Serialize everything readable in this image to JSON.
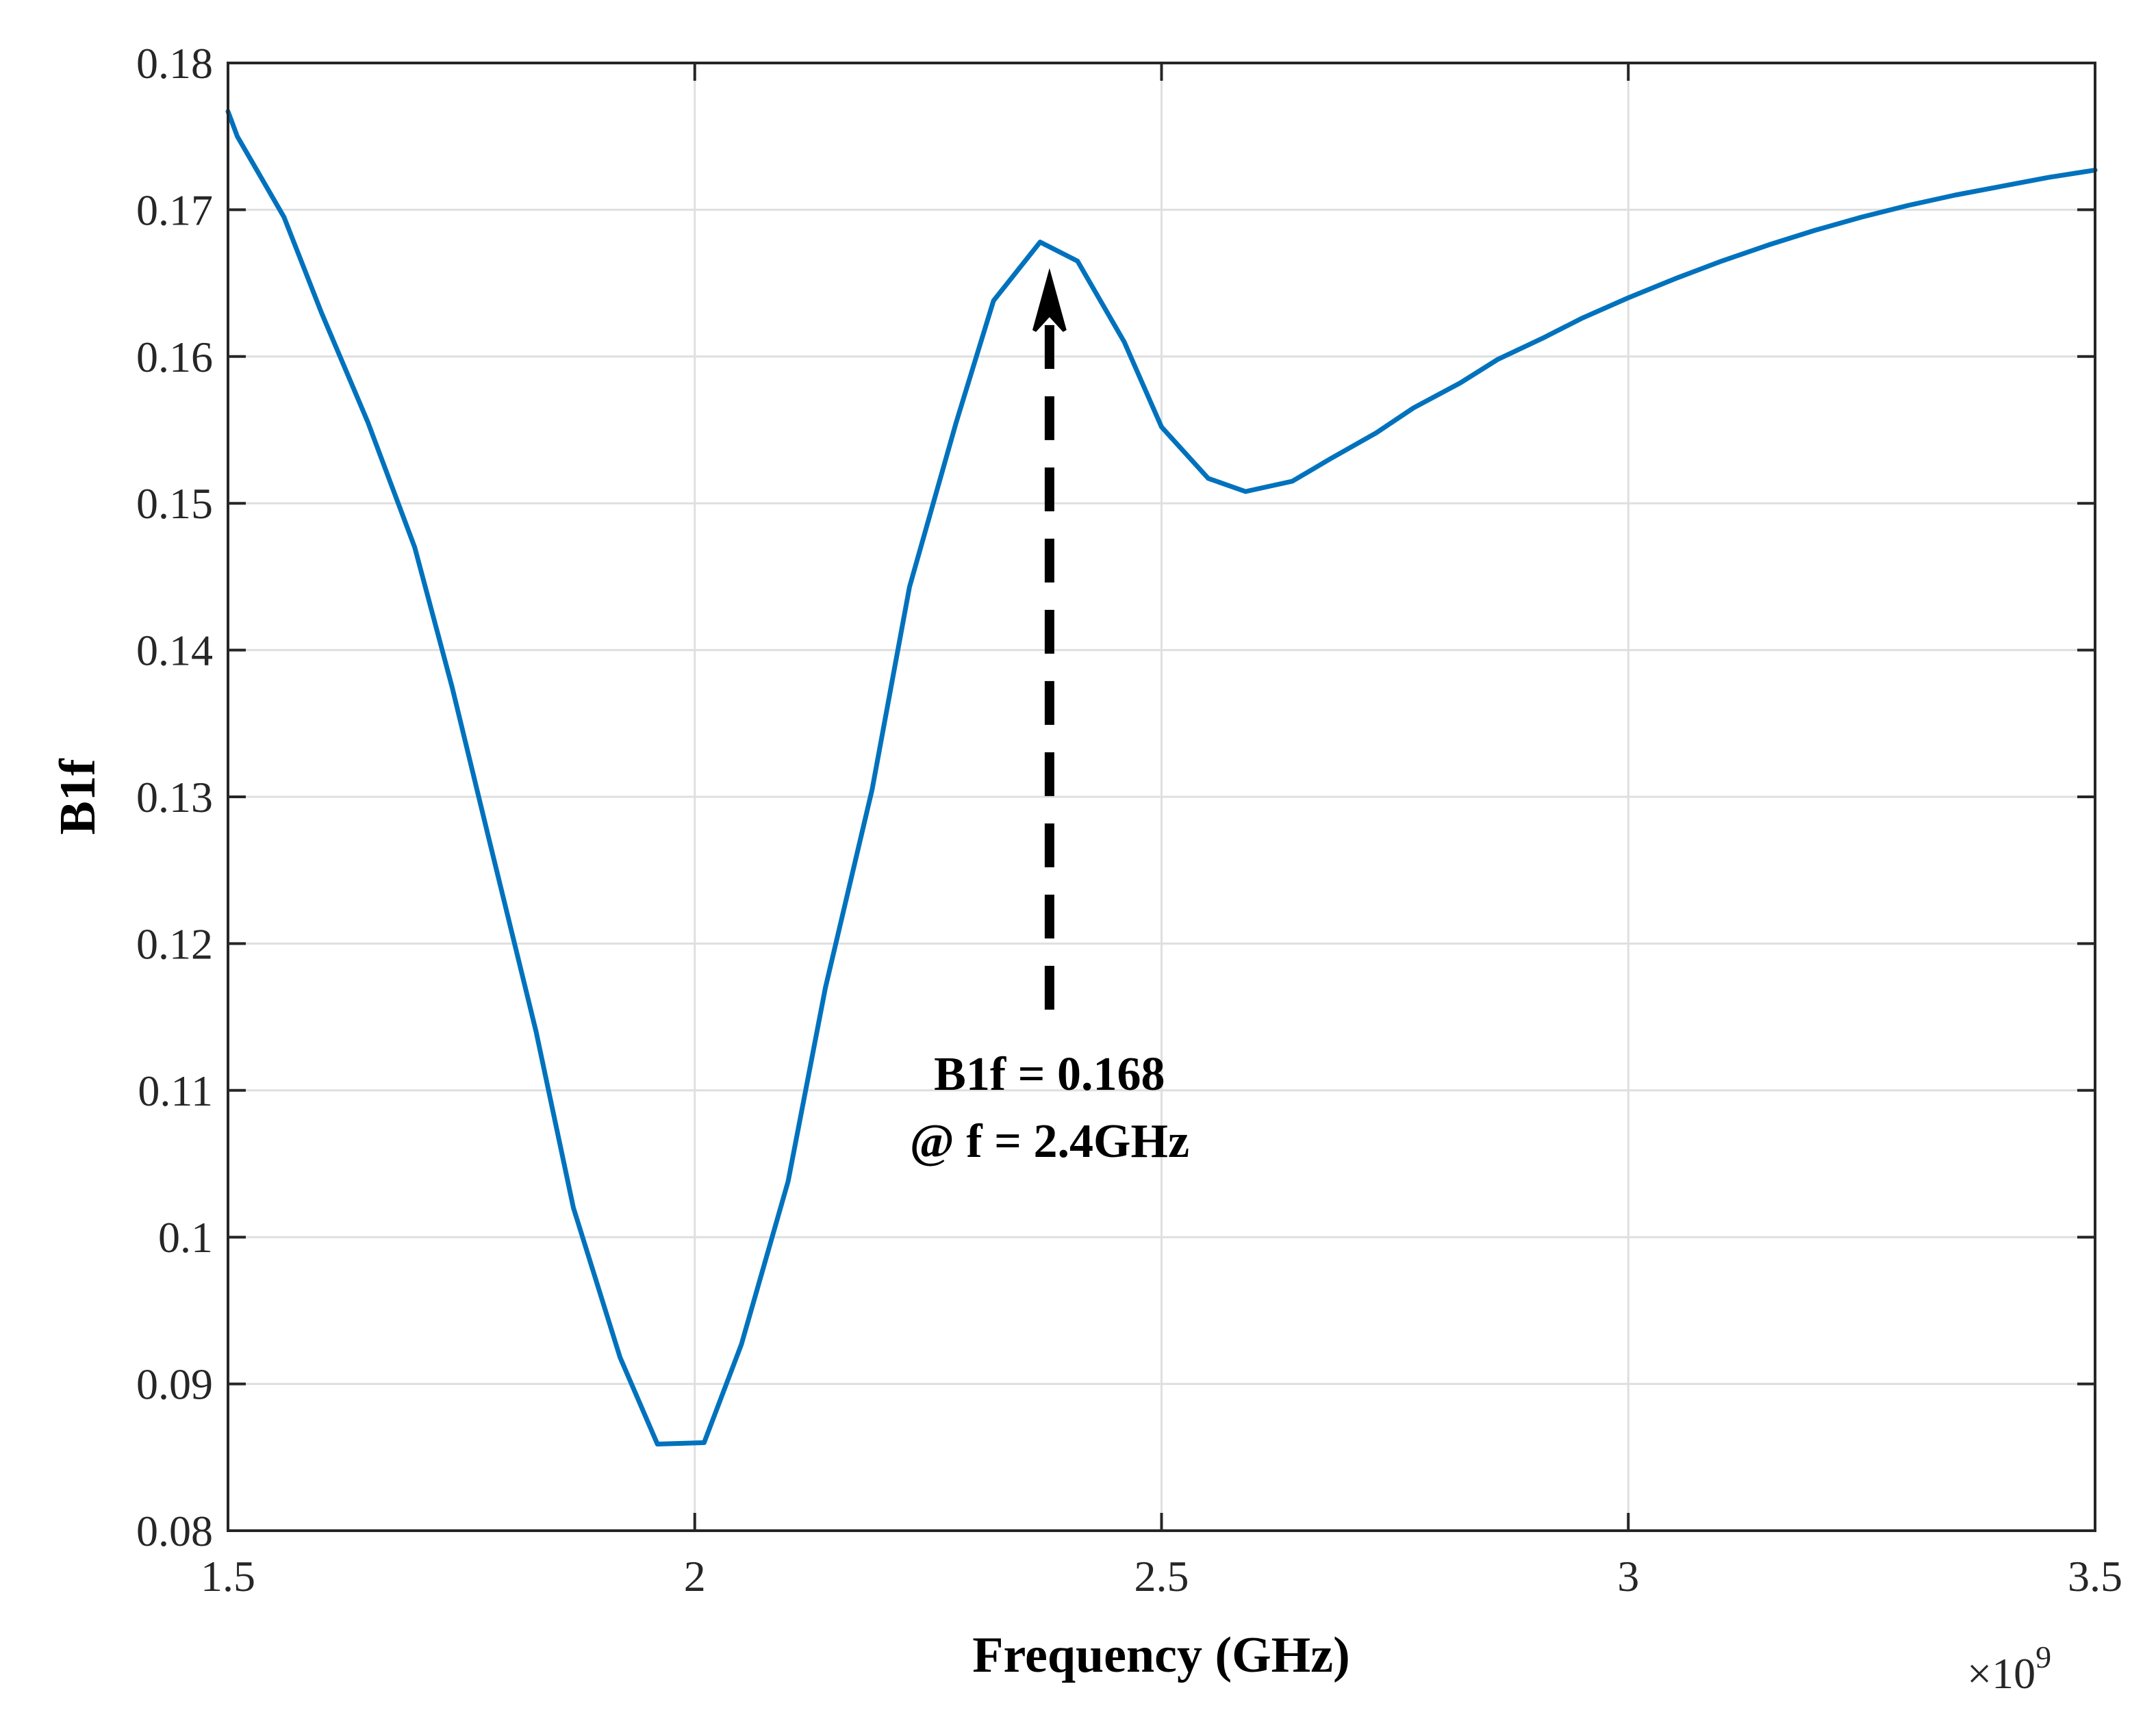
{
  "chart_data": {
    "type": "line",
    "title": "",
    "xlabel": "Frequency (GHz)",
    "ylabel": "B1f",
    "x_exponent_label": "×10",
    "x_exponent_power": "9",
    "xlim": [
      1.5,
      3.5
    ],
    "ylim": [
      0.08,
      0.18
    ],
    "x_ticks": [
      1.5,
      2,
      2.5,
      3,
      3.5
    ],
    "x_tick_labels": [
      "1.5",
      "2",
      "2.5",
      "3",
      "3.5"
    ],
    "y_ticks": [
      0.08,
      0.09,
      0.1,
      0.11,
      0.12,
      0.13,
      0.14,
      0.15,
      0.16,
      0.17,
      0.18
    ],
    "y_tick_labels": [
      "0.08",
      "0.09",
      "0.1",
      "0.11",
      "0.12",
      "0.13",
      "0.14",
      "0.15",
      "0.16",
      "0.17",
      "0.18"
    ],
    "grid": true,
    "line_color": "#0072BD",
    "series": [
      {
        "x": [
          1.5,
          1.51,
          1.56,
          1.6,
          1.65,
          1.7,
          1.74,
          1.78,
          1.83,
          1.87,
          1.92,
          1.96,
          2.01,
          2.05,
          2.1,
          2.14,
          2.19,
          2.23,
          2.28,
          2.32,
          2.37,
          2.41,
          2.46,
          2.5,
          2.55,
          2.59,
          2.64,
          2.68,
          2.73,
          2.77,
          2.82,
          2.86,
          2.91,
          2.95,
          3.0,
          3.05,
          3.1,
          3.15,
          3.2,
          3.25,
          3.3,
          3.35,
          3.4,
          3.45,
          3.5
        ],
        "y": [
          0.1767,
          0.175,
          0.1695,
          0.163,
          0.1555,
          0.147,
          0.1375,
          0.127,
          0.114,
          0.102,
          0.0918,
          0.0859,
          0.086,
          0.0927,
          0.1038,
          0.117,
          0.1305,
          0.1443,
          0.1555,
          0.1638,
          0.1678,
          0.1665,
          0.161,
          0.1552,
          0.1517,
          0.1508,
          0.1515,
          0.153,
          0.1548,
          0.1565,
          0.1582,
          0.1598,
          0.1613,
          0.1626,
          0.164,
          0.1653,
          0.1665,
          0.1676,
          0.1686,
          0.1695,
          0.1703,
          0.171,
          0.1716,
          0.1722,
          0.1727
        ]
      }
    ],
    "annotations": [
      {
        "lines": [
          "B1f = 0.168",
          "@ f = 2.4GHz"
        ],
        "arrow_from": [
          2.38,
          0.1155
        ],
        "arrow_to": [
          2.38,
          0.1655
        ]
      }
    ]
  }
}
